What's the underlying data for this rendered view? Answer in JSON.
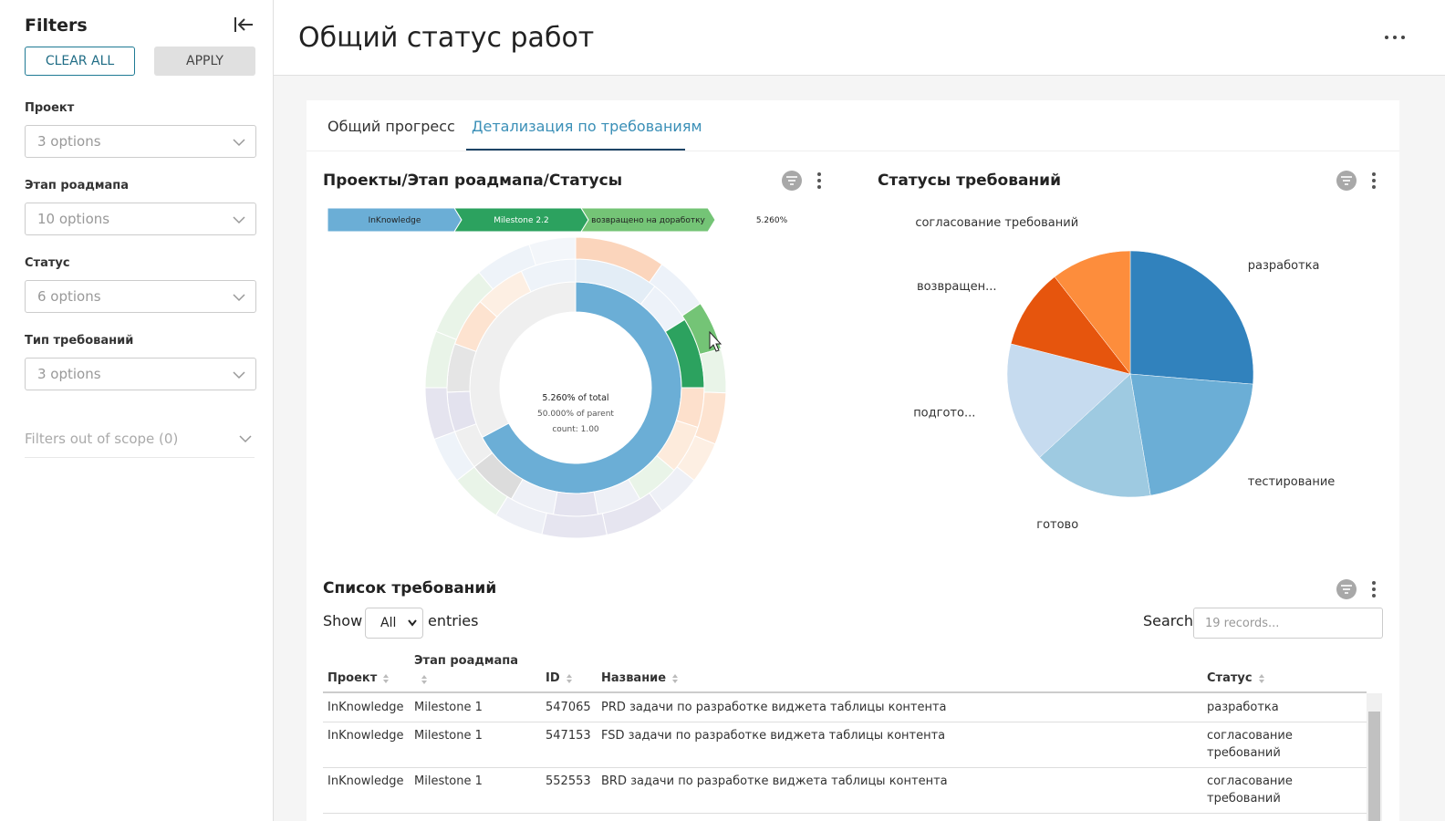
{
  "sidebar": {
    "title": "Filters",
    "clear_all": "CLEAR ALL",
    "apply": "APPLY",
    "filters": [
      {
        "label": "Проект",
        "placeholder": "3 options"
      },
      {
        "label": "Этап роадмапа",
        "placeholder": "10 options"
      },
      {
        "label": "Статус",
        "placeholder": "6 options"
      },
      {
        "label": "Тип требований",
        "placeholder": "3 options"
      }
    ],
    "out_of_scope": "Filters out of scope (0)"
  },
  "header": {
    "title": "Общий статус работ"
  },
  "tabs": [
    "Общий прогресс",
    "Детализация по требованиям"
  ],
  "sunburst": {
    "title": "Проекты/Этап роадмапа/Статусы",
    "breadcrumb": [
      "InKnowledge",
      "Milestone 2.2",
      "возвращено на доработку"
    ],
    "breadcrumb_value": "5.260%",
    "center": [
      "5.260% of total",
      "50.000% of parent",
      "count: 1.00"
    ]
  },
  "pie_chart": {
    "type": "pie",
    "title": "Статусы требований",
    "categories": [
      "разработка",
      "тестирование",
      "готово",
      "подгото...",
      "возвращен...",
      "согласование требований"
    ],
    "values": [
      5,
      4,
      3,
      3,
      2,
      2
    ],
    "colors": [
      "#3182bd",
      "#6baed6",
      "#9ecae1",
      "#c6dbef",
      "#e6550d",
      "#fd8d3c"
    ]
  },
  "table": {
    "title": "Список требований",
    "show": "Show",
    "length": "All",
    "entries": "entries",
    "search": "Search",
    "search_placeholder": "19 records...",
    "columns": [
      "Проект",
      "Этап роадмапа",
      "ID",
      "Название",
      "Статус"
    ],
    "rows": [
      [
        "InKnowledge",
        "Milestone 1",
        "547065",
        "PRD задачи по разработке виджета таблицы контента",
        "разработка"
      ],
      [
        "InKnowledge",
        "Milestone 1",
        "547153",
        "FSD задачи по разработке виджета таблицы контента",
        "согласование требований"
      ],
      [
        "InKnowledge",
        "Milestone 1",
        "552553",
        "BRD задачи по разработке виджета таблицы контента",
        "согласование требований"
      ]
    ]
  }
}
